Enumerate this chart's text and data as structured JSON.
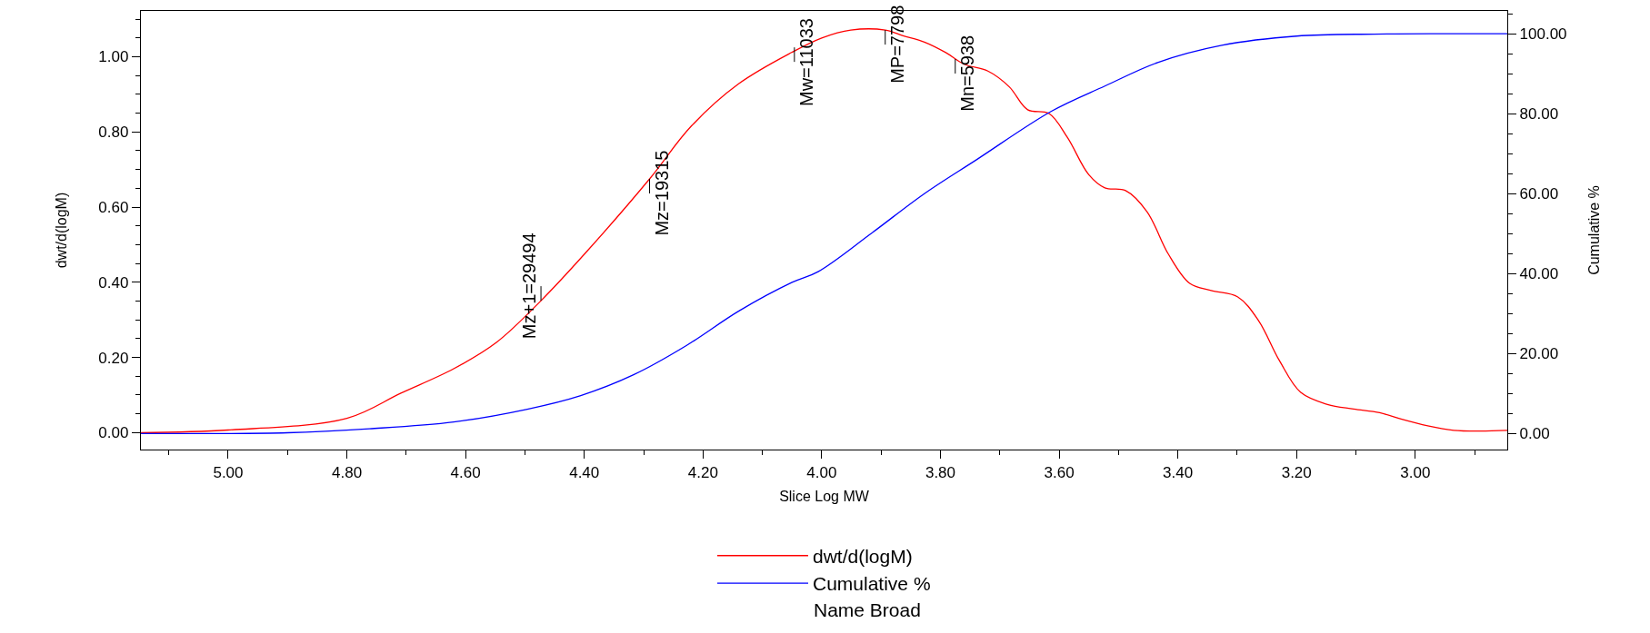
{
  "chart_data": {
    "type": "line",
    "xlabel": "Slice Log MW",
    "ylabel": "dwt/d(logM)",
    "y2label": "Cumulative %",
    "xlim": [
      5.147,
      2.845
    ],
    "xticks": [
      {
        "value": 5,
        "label": "5.00"
      },
      {
        "value": 4.8,
        "label": "4.80"
      },
      {
        "value": 4.6,
        "label": "4.60"
      },
      {
        "value": 4.4,
        "label": "4.40"
      },
      {
        "value": 4.2,
        "label": "4.20"
      },
      {
        "value": 4,
        "label": "4.00"
      },
      {
        "value": 3.8,
        "label": "3.80"
      },
      {
        "value": 3.6,
        "label": "3.60"
      },
      {
        "value": 3.4,
        "label": "3.40"
      },
      {
        "value": 3.2,
        "label": "3.20"
      },
      {
        "value": 3,
        "label": "3.00"
      }
    ],
    "ylim": [
      -0.045,
      1.122
    ],
    "yticks": [
      {
        "value": 0,
        "label": "0.00"
      },
      {
        "value": 0.2,
        "label": "0.20"
      },
      {
        "value": 0.4,
        "label": "0.40"
      },
      {
        "value": 0.6,
        "label": "0.60"
      },
      {
        "value": 0.8,
        "label": "0.80"
      },
      {
        "value": 1,
        "label": "1.00"
      }
    ],
    "y2lim": [
      -4,
      105.7
    ],
    "y2ticks": [
      {
        "value": 0,
        "label": "0.00"
      },
      {
        "value": 20,
        "label": "20.00"
      },
      {
        "value": 40,
        "label": "40.00"
      },
      {
        "value": 60,
        "label": "60.00"
      },
      {
        "value": 80,
        "label": "80.00"
      },
      {
        "value": 100,
        "label": "100.00"
      }
    ],
    "grid": false,
    "legend": "bottom",
    "line_style": "solid",
    "marker": "none",
    "series": [
      {
        "name": "dwt/d(logM)",
        "color": "#ff0000",
        "x": [
          5.147,
          5.0,
          4.8,
          4.709,
          4.62,
          4.548,
          4.473,
          4.398,
          4.29,
          4.22,
          4.14,
          4.05,
          4.0,
          3.951,
          3.893,
          3.863,
          3.827,
          3.791,
          3.76,
          3.72,
          3.684,
          3.653,
          3.617,
          3.586,
          3.55,
          3.523,
          3.488,
          3.452,
          3.416,
          3.38,
          3.344,
          3.299,
          3.264,
          3.229,
          3.193,
          3.148,
          3.104,
          3.06,
          3.024,
          2.979,
          2.935,
          2.89,
          2.845
        ],
        "values": [
          0,
          0.007,
          0.038,
          0.105,
          0.17,
          0.24,
          0.351,
          0.478,
          0.675,
          0.815,
          0.928,
          1.012,
          1.05,
          1.071,
          1.071,
          1.056,
          1.039,
          1.011,
          0.98,
          0.962,
          0.92,
          0.859,
          0.849,
          0.785,
          0.686,
          0.651,
          0.644,
          0.588,
          0.475,
          0.397,
          0.378,
          0.361,
          0.298,
          0.192,
          0.107,
          0.075,
          0.063,
          0.053,
          0.036,
          0.018,
          0.006,
          0.004,
          0.006
        ]
      },
      {
        "name": "Cumulative %",
        "color": "#0000ff",
        "axis": "y2",
        "x": [
          5.147,
          4.9,
          4.762,
          4.62,
          4.496,
          4.406,
          4.317,
          4.228,
          4.14,
          4.05,
          4.006,
          3.917,
          3.827,
          3.738,
          3.613,
          3.523,
          3.434,
          3.326,
          3.2,
          3.07,
          2.95,
          2.845
        ],
        "values": [
          0,
          0.2,
          1.2,
          2.9,
          6.1,
          9.5,
          14.7,
          22,
          30.6,
          37.8,
          40.5,
          50,
          60,
          68.6,
          80.6,
          86.9,
          92.8,
          97.1,
          99.4,
          99.9,
          100,
          100
        ]
      }
    ],
    "annotations": [
      {
        "text": "Mz+1=29494",
        "x": 4.473,
        "y": 0.351
      },
      {
        "text": "Mz=19315",
        "x": 4.29,
        "y": 0.675
      },
      {
        "text": "Mw=11033",
        "x": 4.046,
        "y": 1.025
      },
      {
        "text": "MP=7798",
        "x": 3.893,
        "y": 1.071
      },
      {
        "text": "Mn=5938",
        "x": 3.775,
        "y": 0.994
      },
      "Name Broad"
    ]
  }
}
